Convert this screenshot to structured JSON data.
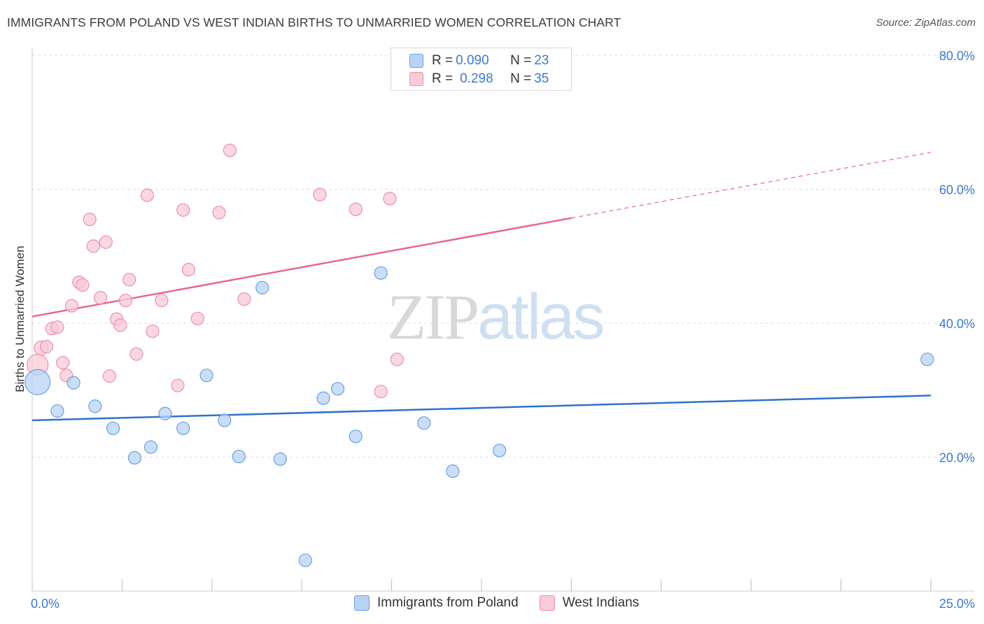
{
  "header": {
    "title": "IMMIGRANTS FROM POLAND VS WEST INDIAN BIRTHS TO UNMARRIED WOMEN CORRELATION CHART",
    "source": "Source: ZipAtlas.com"
  },
  "watermark": {
    "zip": "ZIP",
    "atlas": "atlas"
  },
  "legend": {
    "rows": [
      {
        "r_label": "R = ",
        "r_value": "0.090",
        "n_label": "N = ",
        "n_value": "23"
      },
      {
        "r_label": "R = ",
        "r_value": "0.298",
        "n_label": "N = ",
        "n_value": "35"
      }
    ]
  },
  "colors": {
    "blue_fill": "#b8d3f5",
    "blue_stroke": "#6a9fe0",
    "blue_line": "#2f72cc",
    "pink_fill": "#f9cad7",
    "pink_stroke": "#ea8fab",
    "pink_line": "#e8678f",
    "tick_text": "#3b7ad1",
    "grid": "#dddddd"
  },
  "chart_data": {
    "type": "scatter",
    "title": "IMMIGRANTS FROM POLAND VS WEST INDIAN BIRTHS TO UNMARRIED WOMEN CORRELATION CHART",
    "xlabel": "",
    "ylabel": "Births to Unmarried Women",
    "xlim": [
      0,
      25
    ],
    "ylim": [
      0,
      83
    ],
    "x_tick_labels": [
      "0.0%",
      "25.0%"
    ],
    "y_ticks": [
      20,
      40,
      60,
      80
    ],
    "y_tick_labels": [
      "20.0%",
      "40.0%",
      "60.0%",
      "80.0%"
    ],
    "grid": true,
    "legend_position": "top-center",
    "series": [
      {
        "name": "Immigrants from Poland",
        "color": "blue",
        "points": [
          [
            0.15,
            31.2
          ],
          [
            0.7,
            26.9
          ],
          [
            1.15,
            31.1
          ],
          [
            1.75,
            27.6
          ],
          [
            2.25,
            24.3
          ],
          [
            2.85,
            19.9
          ],
          [
            3.3,
            21.5
          ],
          [
            3.7,
            26.5
          ],
          [
            4.2,
            24.3
          ],
          [
            4.85,
            32.2
          ],
          [
            5.35,
            25.5
          ],
          [
            5.75,
            20.1
          ],
          [
            6.4,
            45.3
          ],
          [
            6.9,
            19.7
          ],
          [
            7.6,
            4.6
          ],
          [
            8.1,
            28.8
          ],
          [
            8.5,
            30.2
          ],
          [
            9.0,
            23.1
          ],
          [
            9.7,
            47.5
          ],
          [
            10.9,
            25.1
          ],
          [
            11.7,
            17.9
          ],
          [
            13.0,
            21.0
          ],
          [
            24.9,
            34.6
          ]
        ],
        "sizes": [
          18,
          9,
          9,
          9,
          9,
          9,
          9,
          9,
          9,
          9,
          9,
          9,
          9,
          9,
          9,
          9,
          9,
          9,
          9,
          9,
          9,
          9,
          9
        ],
        "trend": {
          "x": [
            0,
            25
          ],
          "y": [
            25.5,
            29.2
          ],
          "solid_until": 25
        }
      },
      {
        "name": "West Indians",
        "color": "pink",
        "points": [
          [
            0.15,
            33.8
          ],
          [
            0.25,
            36.3
          ],
          [
            0.4,
            36.5
          ],
          [
            0.55,
            39.2
          ],
          [
            0.7,
            39.4
          ],
          [
            0.85,
            34.1
          ],
          [
            0.95,
            32.2
          ],
          [
            1.1,
            42.6
          ],
          [
            1.3,
            46.1
          ],
          [
            1.4,
            45.7
          ],
          [
            1.6,
            55.5
          ],
          [
            1.7,
            51.5
          ],
          [
            1.9,
            43.8
          ],
          [
            2.05,
            52.1
          ],
          [
            2.15,
            32.1
          ],
          [
            2.35,
            40.6
          ],
          [
            2.45,
            39.7
          ],
          [
            2.6,
            43.4
          ],
          [
            2.7,
            46.5
          ],
          [
            2.9,
            35.4
          ],
          [
            3.2,
            59.1
          ],
          [
            3.35,
            38.8
          ],
          [
            3.6,
            43.4
          ],
          [
            4.05,
            30.7
          ],
          [
            4.2,
            56.9
          ],
          [
            4.35,
            48.0
          ],
          [
            4.6,
            40.7
          ],
          [
            5.2,
            56.5
          ],
          [
            5.5,
            65.8
          ],
          [
            5.9,
            43.6
          ],
          [
            8.0,
            59.2
          ],
          [
            9.0,
            57.0
          ],
          [
            9.7,
            29.8
          ],
          [
            9.95,
            58.6
          ],
          [
            10.15,
            34.6
          ]
        ],
        "sizes": [
          15,
          10,
          9,
          9,
          9,
          9,
          9,
          9,
          9,
          9,
          9,
          9,
          9,
          9,
          9,
          9,
          9,
          9,
          9,
          9,
          9,
          9,
          9,
          9,
          9,
          9,
          9,
          9,
          9,
          9,
          9,
          9,
          9,
          9,
          9
        ],
        "trend": {
          "x": [
            0,
            25
          ],
          "y": [
            41.0,
            65.5
          ],
          "solid_until": 15
        }
      }
    ]
  },
  "bottom_legend": {
    "items": [
      {
        "label": "Immigrants from Poland"
      },
      {
        "label": "West Indians"
      }
    ]
  }
}
